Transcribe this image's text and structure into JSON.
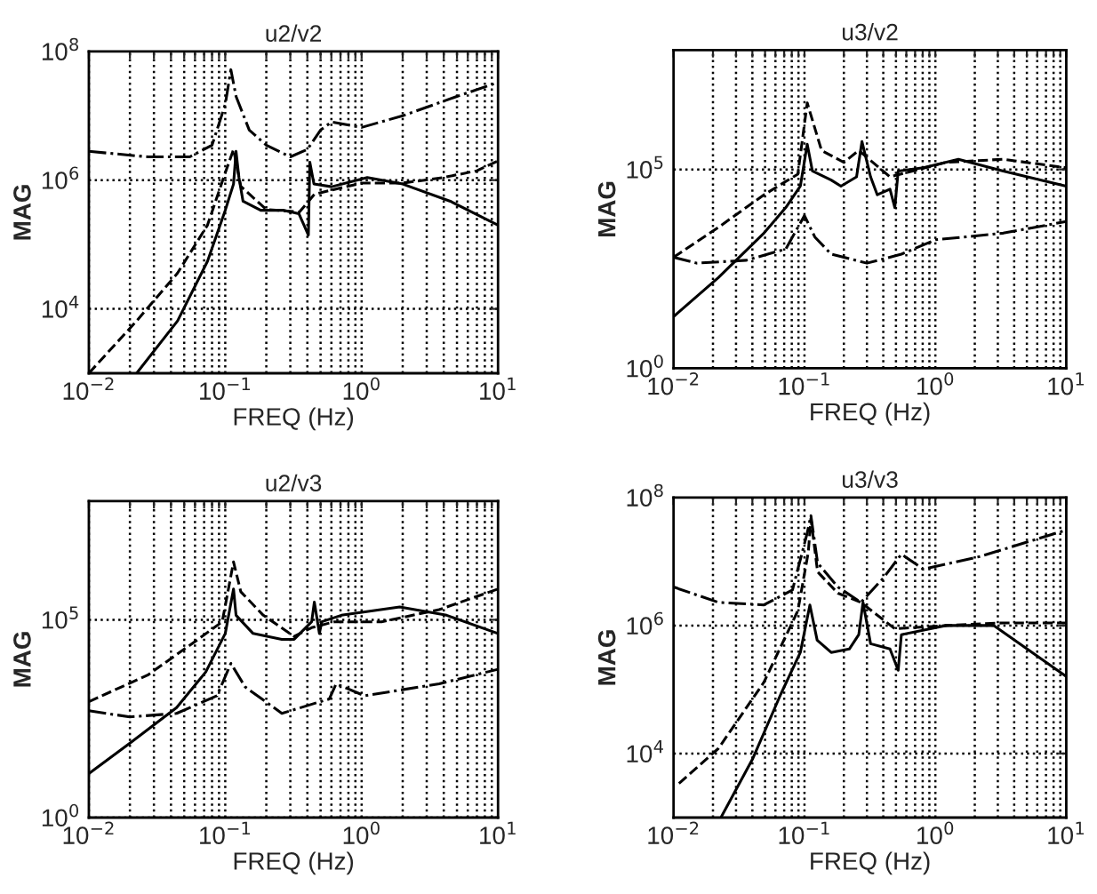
{
  "chart_data": [
    {
      "type": "line",
      "title": "u2/v2",
      "xlabel": "FREQ (Hz)",
      "ylabel": "MAG",
      "log": "xy",
      "grid": true,
      "xlim": [
        0.01,
        10
      ],
      "ylim": [
        1000,
        100000000
      ],
      "xticks": [
        {
          "value": 0.01,
          "label": "10$^{−2}$"
        },
        {
          "value": 0.02,
          "label": null
        },
        {
          "value": 0.03,
          "label": null
        },
        {
          "value": 0.04,
          "label": null
        },
        {
          "value": 0.05,
          "label": null
        },
        {
          "value": 0.06,
          "label": null
        },
        {
          "value": 0.07,
          "label": null
        },
        {
          "value": 0.08,
          "label": null
        },
        {
          "value": 0.09,
          "label": null
        },
        {
          "value": 0.1,
          "label": "10$^{−1}$"
        },
        {
          "value": 0.2,
          "label": null
        },
        {
          "value": 0.3,
          "label": null
        },
        {
          "value": 0.4,
          "label": null
        },
        {
          "value": 0.5,
          "label": null
        },
        {
          "value": 0.6,
          "label": null
        },
        {
          "value": 0.7,
          "label": null
        },
        {
          "value": 0.8,
          "label": null
        },
        {
          "value": 0.9,
          "label": null
        },
        {
          "value": 1,
          "label": "10$^{0}$"
        },
        {
          "value": 2,
          "label": null
        },
        {
          "value": 3,
          "label": null
        },
        {
          "value": 4,
          "label": null
        },
        {
          "value": 5,
          "label": null
        },
        {
          "value": 6,
          "label": null
        },
        {
          "value": 7,
          "label": null
        },
        {
          "value": 8,
          "label": null
        },
        {
          "value": 9,
          "label": null
        },
        {
          "value": 10,
          "label": "10$^{1}$"
        }
      ],
      "yticks": [
        {
          "value": 10000,
          "label": "10$^{4}$"
        },
        {
          "value": 1000000,
          "label": "10$^{6}$"
        },
        {
          "value": 100000000,
          "label": "10$^{8}$"
        }
      ],
      "series": [
        {
          "color": "#000000",
          "line_style": "solid",
          "x": [
            0.0224,
            0.0447,
            0.0741,
            0.1,
            0.115,
            0.12,
            0.126,
            0.135,
            0.182,
            0.269,
            0.347,
            0.407,
            0.417,
            0.447,
            0.603,
            1.1,
            2.0,
            4.47,
            10
          ],
          "values": [
            1000,
            6500,
            55000,
            340000,
            870000,
            2800000,
            1100000,
            470000,
            340000,
            340000,
            300000,
            140000,
            1900000,
            870000,
            790000,
            1100000,
            870000,
            470000,
            200000
          ]
        },
        {
          "color": "#000000",
          "line_style": "dashed",
          "x": [
            0.01,
            0.0224,
            0.0447,
            0.0741,
            0.1,
            0.115,
            0.13,
            0.2,
            0.35,
            0.45,
            0.6,
            1.0,
            2.0,
            4.0,
            7.0,
            10
          ],
          "values": [
            1000,
            6500,
            36000,
            200000,
            1300000,
            3000000,
            800000,
            350000,
            320000,
            600000,
            700000,
            900000,
            900000,
            1100000,
            1400000,
            2000000
          ]
        },
        {
          "color": "#000000",
          "line_style": "dashdot",
          "x": [
            0.01,
            0.027,
            0.055,
            0.08,
            0.1,
            0.11,
            0.12,
            0.15,
            0.2,
            0.3,
            0.4,
            0.5,
            0.6,
            1.0,
            2.0,
            5.0,
            10
          ],
          "values": [
            2800000,
            2300000,
            2300000,
            3500000,
            15000000,
            52000000,
            20000000,
            6000000,
            3500000,
            2300000,
            3000000,
            6000000,
            8000000,
            6600000,
            10000000,
            20000000,
            33000000
          ]
        }
      ]
    },
    {
      "type": "line",
      "title": "u3/v2",
      "xlabel": "FREQ (Hz)",
      "ylabel": "MAG",
      "log": "xy",
      "grid": true,
      "xlim": [
        0.01,
        10
      ],
      "ylim": [
        1,
        100000000
      ],
      "xticks": [
        {
          "value": 0.01,
          "label": "10$^{−2}$"
        },
        {
          "value": 0.02,
          "label": null
        },
        {
          "value": 0.03,
          "label": null
        },
        {
          "value": 0.04,
          "label": null
        },
        {
          "value": 0.05,
          "label": null
        },
        {
          "value": 0.06,
          "label": null
        },
        {
          "value": 0.07,
          "label": null
        },
        {
          "value": 0.08,
          "label": null
        },
        {
          "value": 0.09,
          "label": null
        },
        {
          "value": 0.1,
          "label": "10$^{−1}$"
        },
        {
          "value": 0.2,
          "label": null
        },
        {
          "value": 0.3,
          "label": null
        },
        {
          "value": 0.4,
          "label": null
        },
        {
          "value": 0.5,
          "label": null
        },
        {
          "value": 0.6,
          "label": null
        },
        {
          "value": 0.7,
          "label": null
        },
        {
          "value": 0.8,
          "label": null
        },
        {
          "value": 0.9,
          "label": null
        },
        {
          "value": 1,
          "label": "10$^{0}$"
        },
        {
          "value": 2,
          "label": null
        },
        {
          "value": 3,
          "label": null
        },
        {
          "value": 4,
          "label": null
        },
        {
          "value": 5,
          "label": null
        },
        {
          "value": 6,
          "label": null
        },
        {
          "value": 7,
          "label": null
        },
        {
          "value": 8,
          "label": null
        },
        {
          "value": 9,
          "label": null
        },
        {
          "value": 10,
          "label": "10$^{1}$"
        }
      ],
      "yticks": [
        {
          "value": 1,
          "label": "10$^{0}$"
        },
        {
          "value": 100000,
          "label": "10$^{5}$"
        }
      ],
      "series": [
        {
          "color": "#000000",
          "line_style": "solid",
          "x": [
            0.01,
            0.022,
            0.049,
            0.072,
            0.093,
            0.105,
            0.115,
            0.16,
            0.19,
            0.25,
            0.275,
            0.32,
            0.36,
            0.45,
            0.49,
            0.52,
            0.81,
            1.5,
            3.3,
            10
          ],
          "values": [
            20,
            190,
            2500,
            11000,
            38000,
            430000,
            91000,
            54000,
            38000,
            65000,
            500000,
            65000,
            23000,
            32000,
            11000,
            91000,
            110000,
            180000,
            91000,
            38000
          ]
        },
        {
          "color": "#000000",
          "line_style": "dashed",
          "x": [
            0.01,
            0.022,
            0.049,
            0.089,
            0.105,
            0.135,
            0.2,
            0.26,
            0.45,
            1.2,
            3.3,
            10
          ],
          "values": [
            620,
            3500,
            23000,
            76000,
            4700000,
            300000,
            150000,
            300000,
            65000,
            150000,
            180000,
            110000
          ]
        },
        {
          "color": "#000000",
          "line_style": "dashdot",
          "x": [
            0.01,
            0.015,
            0.036,
            0.072,
            0.1,
            0.12,
            0.16,
            0.3,
            0.55,
            1.0,
            3.3,
            10
          ],
          "values": [
            620,
            440,
            520,
            1000,
            6900,
            2000,
            740,
            440,
            740,
            1700,
            2500,
            4900
          ]
        }
      ]
    },
    {
      "type": "line",
      "title": "u2/v3",
      "xlabel": "FREQ (Hz)",
      "ylabel": "MAG",
      "log": "xy",
      "grid": true,
      "xlim": [
        0.01,
        10
      ],
      "ylim": [
        1,
        100000000
      ],
      "xticks": [
        {
          "value": 0.01,
          "label": "10$^{−2}$"
        },
        {
          "value": 0.02,
          "label": null
        },
        {
          "value": 0.03,
          "label": null
        },
        {
          "value": 0.04,
          "label": null
        },
        {
          "value": 0.05,
          "label": null
        },
        {
          "value": 0.06,
          "label": null
        },
        {
          "value": 0.07,
          "label": null
        },
        {
          "value": 0.08,
          "label": null
        },
        {
          "value": 0.09,
          "label": null
        },
        {
          "value": 0.1,
          "label": "10$^{−1}$"
        },
        {
          "value": 0.2,
          "label": null
        },
        {
          "value": 0.3,
          "label": null
        },
        {
          "value": 0.4,
          "label": null
        },
        {
          "value": 0.5,
          "label": null
        },
        {
          "value": 0.6,
          "label": null
        },
        {
          "value": 0.7,
          "label": null
        },
        {
          "value": 0.8,
          "label": null
        },
        {
          "value": 0.9,
          "label": null
        },
        {
          "value": 1,
          "label": "10$^{0}$"
        },
        {
          "value": 2,
          "label": null
        },
        {
          "value": 3,
          "label": null
        },
        {
          "value": 4,
          "label": null
        },
        {
          "value": 5,
          "label": null
        },
        {
          "value": 6,
          "label": null
        },
        {
          "value": 7,
          "label": null
        },
        {
          "value": 8,
          "label": null
        },
        {
          "value": 9,
          "label": null
        },
        {
          "value": 10,
          "label": "10$^{1}$"
        }
      ],
      "yticks": [
        {
          "value": 1,
          "label": "10$^{0}$"
        },
        {
          "value": 100000,
          "label": "10$^{5}$"
        }
      ],
      "series": [
        {
          "color": "#000000",
          "line_style": "solid",
          "x": [
            0.01,
            0.02,
            0.044,
            0.072,
            0.1,
            0.115,
            0.12,
            0.16,
            0.26,
            0.32,
            0.43,
            0.45,
            0.49,
            0.51,
            0.71,
            1.9,
            4.2,
            10
          ],
          "values": [
            13,
            76,
            600,
            4800,
            45000,
            600000,
            130000,
            45000,
            32000,
            32000,
            89000,
            280000,
            45000,
            89000,
            130000,
            210000,
            130000,
            45000
          ]
        },
        {
          "color": "#000000",
          "line_style": "dashed",
          "x": [
            0.01,
            0.027,
            0.059,
            0.095,
            0.115,
            0.13,
            0.19,
            0.32,
            0.43,
            0.63,
            1.4,
            3.7,
            10
          ],
          "values": [
            850,
            4000,
            27000,
            89000,
            2900000,
            510000,
            130000,
            38000,
            63000,
            89000,
            89000,
            180000,
            600000
          ]
        },
        {
          "color": "#000000",
          "line_style": "dashdot",
          "x": [
            0.01,
            0.02,
            0.044,
            0.087,
            0.11,
            0.14,
            0.26,
            0.58,
            0.65,
            1.05,
            3.7,
            10
          ],
          "values": [
            500,
            350,
            430,
            1200,
            7900,
            2000,
            430,
            1000,
            2400,
            1200,
            2400,
            5600
          ]
        }
      ]
    },
    {
      "type": "line",
      "title": "u3/v3",
      "xlabel": "FREQ (Hz)",
      "ylabel": "MAG",
      "log": "xy",
      "grid": true,
      "xlim": [
        0.01,
        10
      ],
      "ylim": [
        1000,
        100000000
      ],
      "xticks": [
        {
          "value": 0.01,
          "label": "10$^{−2}$"
        },
        {
          "value": 0.02,
          "label": null
        },
        {
          "value": 0.03,
          "label": null
        },
        {
          "value": 0.04,
          "label": null
        },
        {
          "value": 0.05,
          "label": null
        },
        {
          "value": 0.06,
          "label": null
        },
        {
          "value": 0.07,
          "label": null
        },
        {
          "value": 0.08,
          "label": null
        },
        {
          "value": 0.09,
          "label": null
        },
        {
          "value": 0.1,
          "label": "10$^{−1}$"
        },
        {
          "value": 0.2,
          "label": null
        },
        {
          "value": 0.3,
          "label": null
        },
        {
          "value": 0.4,
          "label": null
        },
        {
          "value": 0.5,
          "label": null
        },
        {
          "value": 0.6,
          "label": null
        },
        {
          "value": 0.7,
          "label": null
        },
        {
          "value": 0.8,
          "label": null
        },
        {
          "value": 0.9,
          "label": null
        },
        {
          "value": 1,
          "label": "10$^{0}$"
        },
        {
          "value": 2,
          "label": null
        },
        {
          "value": 3,
          "label": null
        },
        {
          "value": 4,
          "label": null
        },
        {
          "value": 5,
          "label": null
        },
        {
          "value": 6,
          "label": null
        },
        {
          "value": 7,
          "label": null
        },
        {
          "value": 8,
          "label": null
        },
        {
          "value": 9,
          "label": null
        },
        {
          "value": 10,
          "label": "10$^{1}$"
        }
      ],
      "yticks": [
        {
          "value": 10000,
          "label": "10$^{4}$"
        },
        {
          "value": 1000000,
          "label": "10$^{6}$"
        },
        {
          "value": 100000000,
          "label": "10$^{8}$"
        }
      ],
      "series": [
        {
          "color": "#000000",
          "line_style": "solid",
          "x": [
            0.023,
            0.04,
            0.066,
            0.093,
            0.11,
            0.125,
            0.16,
            0.22,
            0.26,
            0.28,
            0.32,
            0.45,
            0.52,
            0.55,
            1.2,
            2.8,
            10
          ],
          "values": [
            1000,
            8100,
            85000,
            380000,
            2100000,
            590000,
            380000,
            430000,
            720000,
            2300000,
            520000,
            430000,
            200000,
            720000,
            1000000,
            1000000,
            160000
          ]
        },
        {
          "color": "#000000",
          "line_style": "dashed",
          "x": [
            0.011,
            0.022,
            0.049,
            0.089,
            0.107,
            0.112,
            0.126,
            0.18,
            0.27,
            0.49,
            1.2,
            3.3,
            10
          ],
          "values": [
            3400,
            12000,
            130000,
            1700000,
            14000000,
            47000000,
            6900000,
            3200000,
            2300000,
            890000,
            1000000,
            1100000,
            1100000
          ]
        },
        {
          "color": "#000000",
          "line_style": "dashdot",
          "x": [
            0.01,
            0.022,
            0.049,
            0.081,
            0.105,
            0.112,
            0.126,
            0.18,
            0.27,
            0.4,
            0.55,
            0.81,
            2.2,
            10
          ],
          "values": [
            4000000,
            2300000,
            2100000,
            3600000,
            28000000,
            52000000,
            9500000,
            4000000,
            2300000,
            5500000,
            13000000,
            7600000,
            12000000,
            31000000
          ]
        }
      ]
    }
  ]
}
